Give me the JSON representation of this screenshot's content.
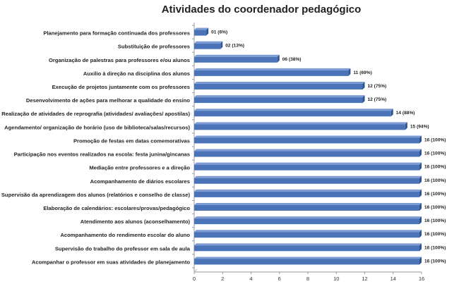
{
  "chart_data": {
    "type": "bar",
    "orientation": "horizontal",
    "title": "Atividades do coordenador pedagógico",
    "xlabel": "",
    "ylabel": "",
    "xlim": [
      0,
      16
    ],
    "xticks": [
      0,
      2,
      4,
      6,
      8,
      10,
      12,
      14,
      16
    ],
    "grid": false,
    "legend": "none",
    "bar_color": "#4a73b8",
    "categories": [
      "Planejamento para formação continuada dos professores",
      "Substituição de professores",
      "Organização de palestras para professores e/ou alunos",
      "Auxilio à direção na disciplina dos alunos",
      "Execução de projetos juntamente com os professores",
      "Desenvolvimento de ações para melhorar a qualidade do ensino",
      "Realização de atividades de reprografia (atividades/ avaliações/ apostilas)",
      "Agendamento/ organização de horário (uso de biblioteca/salas/recursos)",
      "Promoção de festas em datas comemorativas",
      "Participação nos eventos realizados na escola: festa junina/gincanas",
      "Mediação entre professores e a direção",
      "Acompanhamento de diários escolares",
      "Supervisão da aprendizagem dos alunos (relatórios e conselho de classe)",
      "Elaboração de calendários: escolares/provas/pedagógico",
      "Atendimento aos alunos (aconselhamento)",
      "Acompanhamento do rendimento escolar do aluno",
      "Supervisão do trabalho do professor em sala de aula",
      "Acompanhar o professor em suas atividades de planejamento"
    ],
    "values": [
      1,
      2,
      6,
      11,
      12,
      12,
      14,
      15,
      16,
      16,
      16,
      16,
      16,
      16,
      16,
      16,
      16,
      16
    ],
    "data_labels": [
      "01 (6%)",
      "02 (13%)",
      "06 (38%)",
      "11 (69%)",
      "12 (75%)",
      "12 (75%)",
      "14 (88%)",
      "15 (94%)",
      "16 (100%)",
      "16 (100%)",
      "16 (100%)",
      "16 (100%)",
      "16 (100%)",
      "16 (100%)",
      "16 (100%)",
      "16 (100%)",
      "16 (100%)",
      "16 (100%)"
    ]
  }
}
